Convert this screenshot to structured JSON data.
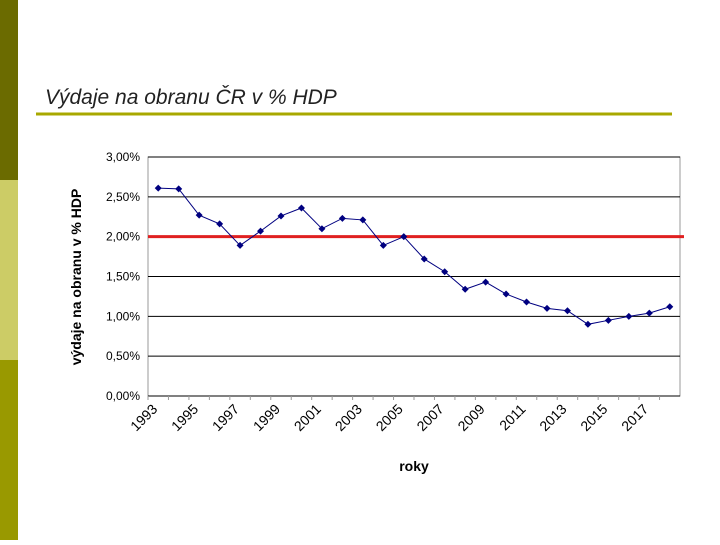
{
  "chart_data": {
    "type": "line",
    "title": "Výdaje na obranu ČR v % HDP",
    "x_label": "roky",
    "y_label": "výdaje na obranu v % HDP",
    "categories": [
      "1993",
      null,
      "1995",
      null,
      "1997",
      null,
      "1999",
      null,
      "2001",
      null,
      "2003",
      null,
      "2005",
      null,
      "2007",
      null,
      "2009",
      null,
      "2011",
      null,
      "2013",
      null,
      "2015",
      null,
      "2017",
      null
    ],
    "series": [
      {
        "name": "výdaje",
        "color": "#000080",
        "values": [
          2.61,
          2.6,
          2.27,
          2.16,
          1.89,
          2.07,
          2.26,
          2.36,
          2.1,
          2.23,
          2.21,
          1.89,
          2.0,
          1.72,
          1.56,
          1.34,
          1.43,
          1.28,
          1.18,
          1.1,
          1.07,
          0.9,
          0.95,
          1.0,
          1.04,
          1.12
        ]
      }
    ],
    "reference_line": {
      "value": 2,
      "color": "#e02020"
    },
    "ylim": [
      0,
      3
    ],
    "yticks": [
      {
        "value": 0,
        "label": "0,00%"
      },
      {
        "value": 0.5,
        "label": "0,50%"
      },
      {
        "value": 1,
        "label": "1,00%"
      },
      {
        "value": 1.5,
        "label": "1,50%"
      },
      {
        "value": 2,
        "label": "2,00%"
      },
      {
        "value": 2.5,
        "label": "2,50%"
      },
      {
        "value": 3,
        "label": "3,00%"
      }
    ],
    "grid": true
  }
}
